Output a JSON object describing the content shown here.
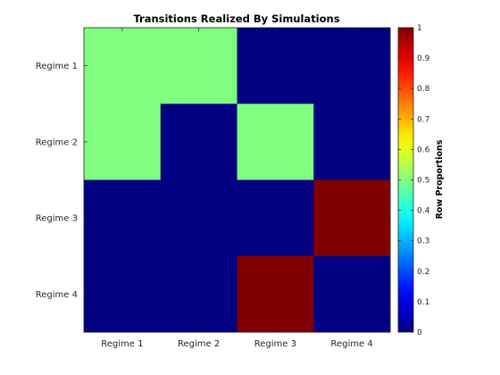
{
  "chart_data": {
    "type": "heatmap",
    "title": "Transitions Realized By Simulations",
    "x_categories": [
      "Regime 1",
      "Regime 2",
      "Regime 3",
      "Regime 4"
    ],
    "y_categories": [
      "Regime 1",
      "Regime 2",
      "Regime 3",
      "Regime 4"
    ],
    "values": [
      [
        0.5,
        0.5,
        0,
        0
      ],
      [
        0.5,
        0,
        0.5,
        0
      ],
      [
        0,
        0,
        0,
        1
      ],
      [
        0,
        0,
        1,
        0
      ]
    ],
    "colormap": "jet",
    "clim": [
      0,
      1
    ],
    "colorbar": {
      "label": "Row Proportions",
      "ticks": [
        0,
        0.1,
        0.2,
        0.3,
        0.4,
        0.5,
        0.6,
        0.7,
        0.8,
        0.9,
        1
      ],
      "tick_labels": [
        "0",
        "0.1",
        "0.2",
        "0.3",
        "0.4",
        "0.5",
        "0.6",
        "0.7",
        "0.8",
        "0.9",
        "1"
      ],
      "placement": "right"
    }
  }
}
